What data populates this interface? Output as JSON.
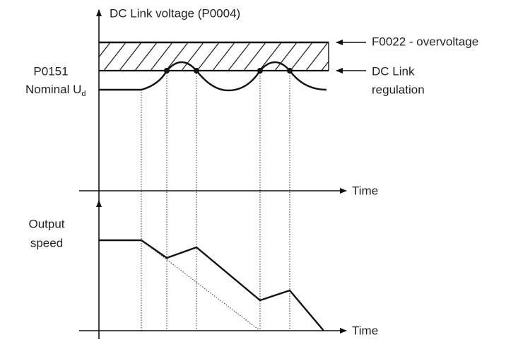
{
  "title": "DC Link voltage (P0004)",
  "labels": {
    "overvoltage": "F0022 - overvoltage",
    "regulation_1": "DC Link",
    "regulation_2": "regulation",
    "nominal_1": "P0151",
    "nominal_2": "Nominal U",
    "nominal_sub": "d",
    "time_top": "Time",
    "time_bottom": "Time",
    "speed_1": "Output",
    "speed_2": "speed"
  }
}
